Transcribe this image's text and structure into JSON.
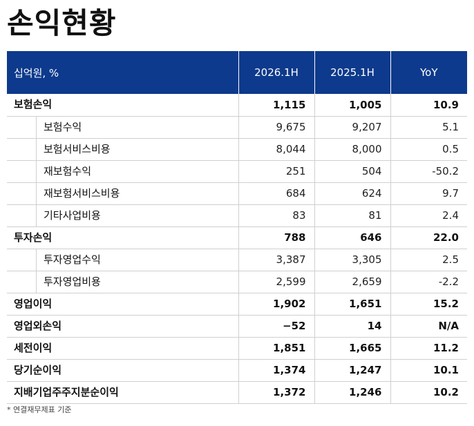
{
  "title": "손익현황",
  "table": {
    "headers": [
      "십억원, %",
      "2026.1H",
      "2025.1H",
      "YoY"
    ],
    "rows": [
      {
        "label": "보험손익",
        "level": "main",
        "v2026": "1,115",
        "v2025": "1,005",
        "yoy": "10.9"
      },
      {
        "label": "보험수익",
        "level": "sub",
        "v2026": "9,675",
        "v2025": "9,207",
        "yoy": "5.1"
      },
      {
        "label": "보험서비스비용",
        "level": "sub",
        "v2026": "8,044",
        "v2025": "8,000",
        "yoy": "0.5"
      },
      {
        "label": "재보험수익",
        "level": "sub",
        "v2026": "251",
        "v2025": "504",
        "yoy": "-50.2"
      },
      {
        "label": "재보험서비스비용",
        "level": "sub",
        "v2026": "684",
        "v2025": "624",
        "yoy": "9.7"
      },
      {
        "label": "기타사업비용",
        "level": "sub",
        "v2026": "83",
        "v2025": "81",
        "yoy": "2.4"
      },
      {
        "label": "투자손익",
        "level": "main",
        "v2026": "788",
        "v2025": "646",
        "yoy": "22.0"
      },
      {
        "label": "투자영업수익",
        "level": "sub",
        "v2026": "3,387",
        "v2025": "3,305",
        "yoy": "2.5"
      },
      {
        "label": "투자영업비용",
        "level": "sub",
        "v2026": "2,599",
        "v2025": "2,659",
        "yoy": "-2.2"
      },
      {
        "label": "영업이익",
        "level": "main",
        "v2026": "1,902",
        "v2025": "1,651",
        "yoy": "15.2"
      },
      {
        "label": "영업외손익",
        "level": "main",
        "v2026": "−52",
        "v2025": "14",
        "yoy": "N/A"
      },
      {
        "label": "세전이익",
        "level": "main",
        "v2026": "1,851",
        "v2025": "1,665",
        "yoy": "11.2"
      },
      {
        "label": "당기순이익",
        "level": "main",
        "v2026": "1,374",
        "v2025": "1,247",
        "yoy": "10.1"
      },
      {
        "label": "지배기업주주지분순이익",
        "level": "main",
        "v2026": "1,372",
        "v2025": "1,246",
        "yoy": "10.2"
      }
    ]
  },
  "footnote": "* 연결재무제표 기준",
  "colors": {
    "header_bg": "#0d3a8c",
    "header_text": "#ffffff",
    "border": "#cfcfcf"
  }
}
